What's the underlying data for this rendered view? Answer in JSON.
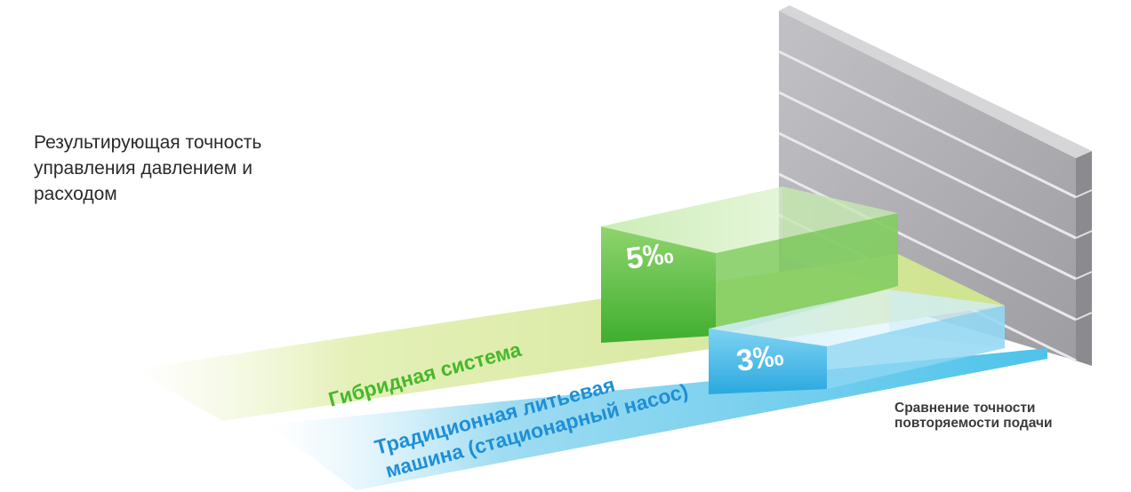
{
  "description": {
    "lines": [
      "Результирующая точность",
      "управления давлением и",
      "расходом"
    ]
  },
  "hybrid": {
    "label": "Гибридная система",
    "value": "5‰",
    "color": "#5cc43a"
  },
  "traditional": {
    "label_line1": "Традиционная литьевая",
    "label_line2": "машина (стационарный насос)",
    "value": "3‰",
    "color": "#29b6e6"
  },
  "caption": {
    "line1": "Сравнение точности",
    "line2": "повторяемости подачи"
  },
  "wall": {
    "color": "#a9a9ad"
  }
}
